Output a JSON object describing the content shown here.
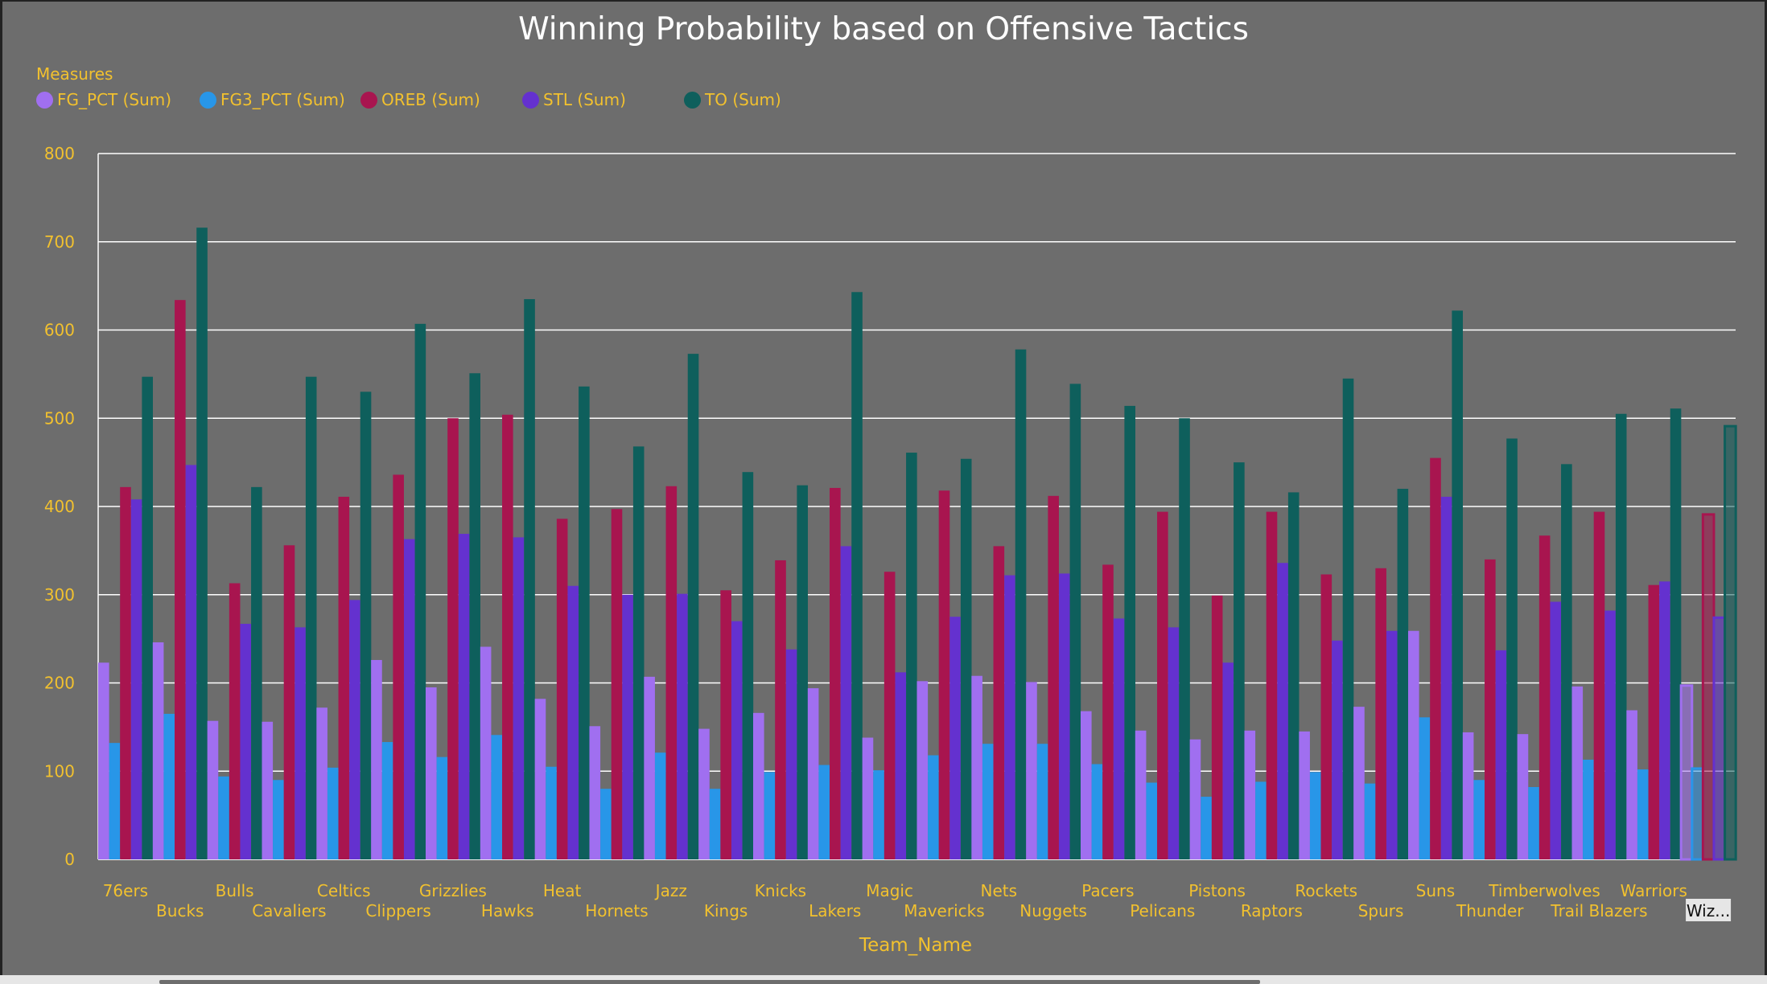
{
  "chart_data": {
    "type": "bar",
    "title": "Winning Probability based on Offensive Tactics",
    "xlabel": "Team_Name",
    "ylabel": "",
    "ylim": [
      0,
      800
    ],
    "yticks": [
      0,
      100,
      200,
      300,
      400,
      500,
      600,
      700,
      800
    ],
    "legend_title": "Measures",
    "legend_position": "top-left",
    "grid": true,
    "categories": [
      "76ers",
      "Bucks",
      "Bulls",
      "Cavaliers",
      "Celtics",
      "Clippers",
      "Grizzlies",
      "Hawks",
      "Heat",
      "Hornets",
      "Jazz",
      "Kings",
      "Knicks",
      "Lakers",
      "Magic",
      "Mavericks",
      "Nets",
      "Nuggets",
      "Pacers",
      "Pelicans",
      "Pistons",
      "Raptors",
      "Rockets",
      "Spurs",
      "Suns",
      "Thunder",
      "Timberwolves",
      "Trail Blazers",
      "Warriors",
      "Wiz..."
    ],
    "series": [
      {
        "name": "FG_PCT (Sum)",
        "color": "#a06ff0",
        "values": [
          223,
          246,
          157,
          156,
          172,
          226,
          195,
          241,
          182,
          151,
          207,
          148,
          166,
          194,
          138,
          202,
          208,
          201,
          168,
          146,
          136,
          146,
          145,
          173,
          259,
          144,
          142,
          196,
          169,
          197
        ]
      },
      {
        "name": "FG3_PCT (Sum)",
        "color": "#2896e8",
        "values": [
          132,
          165,
          94,
          90,
          104,
          133,
          116,
          141,
          105,
          80,
          121,
          80,
          99,
          107,
          101,
          118,
          131,
          131,
          108,
          87,
          71,
          88,
          99,
          86,
          161,
          90,
          82,
          113,
          102,
          103
        ]
      },
      {
        "name": "OREB (Sum)",
        "color": "#a8154f",
        "values": [
          422,
          634,
          313,
          356,
          411,
          436,
          500,
          504,
          386,
          397,
          423,
          305,
          339,
          421,
          326,
          418,
          355,
          412,
          334,
          394,
          299,
          394,
          323,
          330,
          455,
          340,
          367,
          394,
          311,
          391
        ]
      },
      {
        "name": "STL (Sum)",
        "color": "#6431cf",
        "values": [
          408,
          447,
          267,
          263,
          294,
          363,
          369,
          365,
          310,
          300,
          301,
          270,
          238,
          355,
          212,
          275,
          322,
          324,
          273,
          263,
          223,
          336,
          248,
          259,
          411,
          237,
          292,
          282,
          315,
          274
        ]
      },
      {
        "name": "TO (Sum)",
        "color": "#0e5f5c",
        "values": [
          547,
          716,
          422,
          547,
          530,
          607,
          551,
          635,
          536,
          468,
          573,
          439,
          424,
          643,
          461,
          454,
          578,
          539,
          514,
          500,
          450,
          416,
          545,
          420,
          622,
          477,
          448,
          505,
          511,
          491
        ]
      }
    ]
  }
}
